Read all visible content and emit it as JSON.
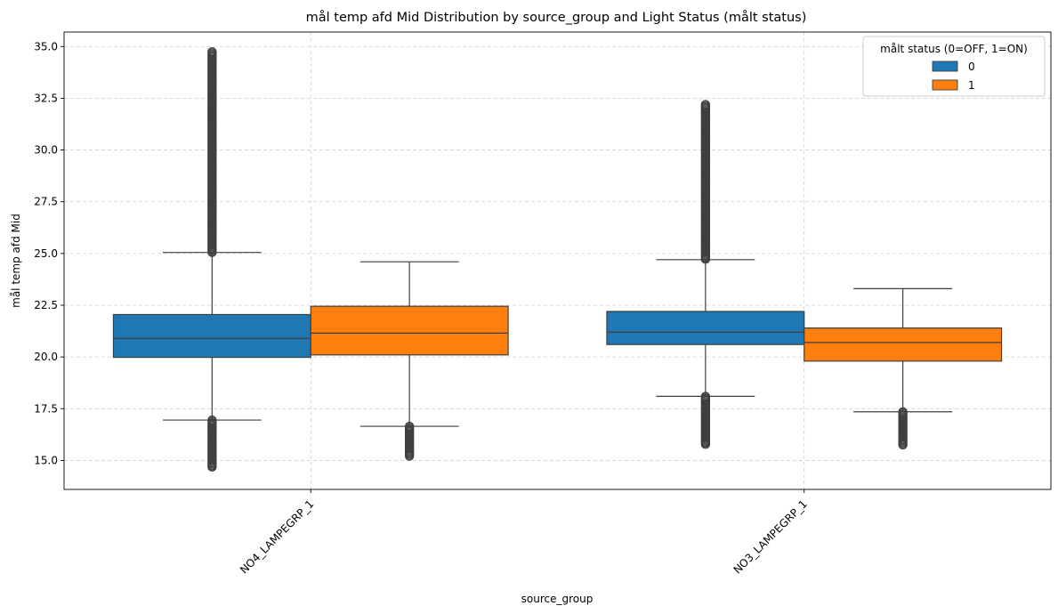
{
  "chart_data": {
    "type": "box",
    "title": "mål temp afd  Mid Distribution by source_group and Light Status (målt status)",
    "xlabel": "source_group",
    "ylabel": "mål temp afd  Mid",
    "categories": [
      "NO4_LAMPEGRP_1",
      "NO3_LAMPEGRP_1"
    ],
    "ylim": [
      13.6,
      35.7
    ],
    "yticks": [
      15.0,
      17.5,
      20.0,
      22.5,
      25.0,
      27.5,
      30.0,
      32.5,
      35.0
    ],
    "ytick_labels": [
      "15.0",
      "17.5",
      "20.0",
      "22.5",
      "25.0",
      "27.5",
      "30.0",
      "32.5",
      "35.0"
    ],
    "grid": true,
    "legend": {
      "title": "målt status (0=OFF, 1=ON)",
      "placement": "upper right",
      "entries": [
        "0",
        "1"
      ]
    },
    "series": [
      {
        "name": "0",
        "color": "#1f77b4",
        "boxes": [
          {
            "category": "NO4_LAMPEGRP_1",
            "whisker_low": 16.95,
            "q1": 19.98,
            "median": 20.9,
            "q3": 22.05,
            "whisker_high": 25.05,
            "outliers_low": [
              14.65,
              16.95
            ],
            "outliers_high": [
              25.05,
              34.75
            ]
          },
          {
            "category": "NO3_LAMPEGRP_1",
            "whisker_low": 18.1,
            "q1": 20.6,
            "median": 21.2,
            "q3": 22.2,
            "whisker_high": 24.7,
            "outliers_low": [
              15.75,
              18.1
            ],
            "outliers_high": [
              24.7,
              32.2
            ]
          }
        ]
      },
      {
        "name": "1",
        "color": "#ff7f0e",
        "boxes": [
          {
            "category": "NO4_LAMPEGRP_1",
            "whisker_low": 16.65,
            "q1": 20.1,
            "median": 21.15,
            "q3": 22.45,
            "whisker_high": 24.6,
            "outliers_low": [
              15.2,
              16.65
            ],
            "outliers_high": []
          },
          {
            "category": "NO3_LAMPEGRP_1",
            "whisker_low": 17.35,
            "q1": 19.8,
            "median": 20.7,
            "q3": 21.4,
            "whisker_high": 23.3,
            "outliers_low": [
              15.7,
              17.35
            ],
            "outliers_high": []
          }
        ]
      }
    ]
  }
}
